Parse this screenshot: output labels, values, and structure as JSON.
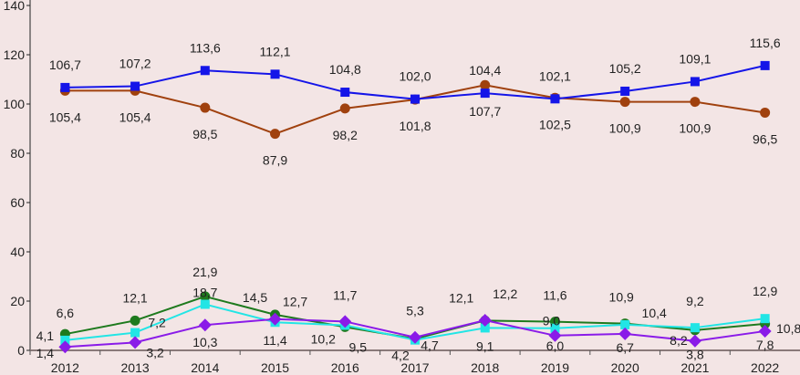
{
  "chart_data": {
    "type": "line",
    "title": "",
    "xlabel": "",
    "ylabel": "",
    "ylim": [
      0,
      140
    ],
    "yticks": [
      0,
      20,
      40,
      60,
      80,
      100,
      120,
      140
    ],
    "categories": [
      "2012",
      "2013",
      "2014",
      "2015",
      "2016",
      "2017",
      "2018",
      "2019",
      "2020",
      "2021",
      "2022"
    ],
    "grid": false,
    "legend": "none",
    "series": [
      {
        "name": "blue",
        "color": "#1515E8",
        "marker": "square",
        "values": [
          106.7,
          107.2,
          113.6,
          112.1,
          104.8,
          102.0,
          104.4,
          102.1,
          105.2,
          109.1,
          115.6
        ],
        "labels": [
          "106,7",
          "107,2",
          "113,6",
          "112,1",
          "104,8",
          "102,0",
          "104,4",
          "102,1",
          "105,2",
          "109,1",
          "115,6"
        ]
      },
      {
        "name": "brown",
        "color": "#A0410E",
        "marker": "circle",
        "values": [
          105.4,
          105.4,
          98.5,
          87.9,
          98.2,
          101.8,
          107.7,
          102.5,
          100.9,
          100.9,
          96.5
        ],
        "labels": [
          "105,4",
          "105,4",
          "98,5",
          "87,9",
          "98,2",
          "101,8",
          "107,7",
          "102,5",
          "100,9",
          "100,9",
          "96,5"
        ]
      },
      {
        "name": "green",
        "color": "#1E7A1E",
        "marker": "circle",
        "values": [
          6.6,
          12.1,
          21.9,
          14.5,
          9.5,
          4.7,
          12.1,
          11.6,
          10.9,
          8.2,
          10.8
        ],
        "labels": [
          "6,6",
          "12,1",
          "21,9",
          "14,5",
          "9,5",
          "4,7",
          "12,1",
          "11,6",
          "10,9",
          "8,2",
          "10,8"
        ]
      },
      {
        "name": "cyan",
        "color": "#22E5E5",
        "marker": "square",
        "values": [
          4.1,
          7.2,
          18.7,
          11.4,
          10.2,
          4.2,
          9.1,
          9.0,
          10.4,
          9.2,
          12.9
        ],
        "labels": [
          "4,1",
          "7,2",
          "18,7",
          "11,4",
          "10,2",
          "4,2",
          "9,1",
          "9,0",
          "10,4",
          "9,2",
          "12,9"
        ]
      },
      {
        "name": "purple",
        "color": "#8A1BE8",
        "marker": "diamond",
        "values": [
          1.4,
          3.2,
          10.3,
          12.7,
          11.7,
          5.3,
          12.2,
          6.0,
          6.7,
          3.8,
          7.8
        ],
        "labels": [
          "1,4",
          "3,2",
          "10,3",
          "12,7",
          "11,7",
          "5,3",
          "12,2",
          "6,0",
          "6,7",
          "3,8",
          "7,8"
        ]
      }
    ]
  }
}
